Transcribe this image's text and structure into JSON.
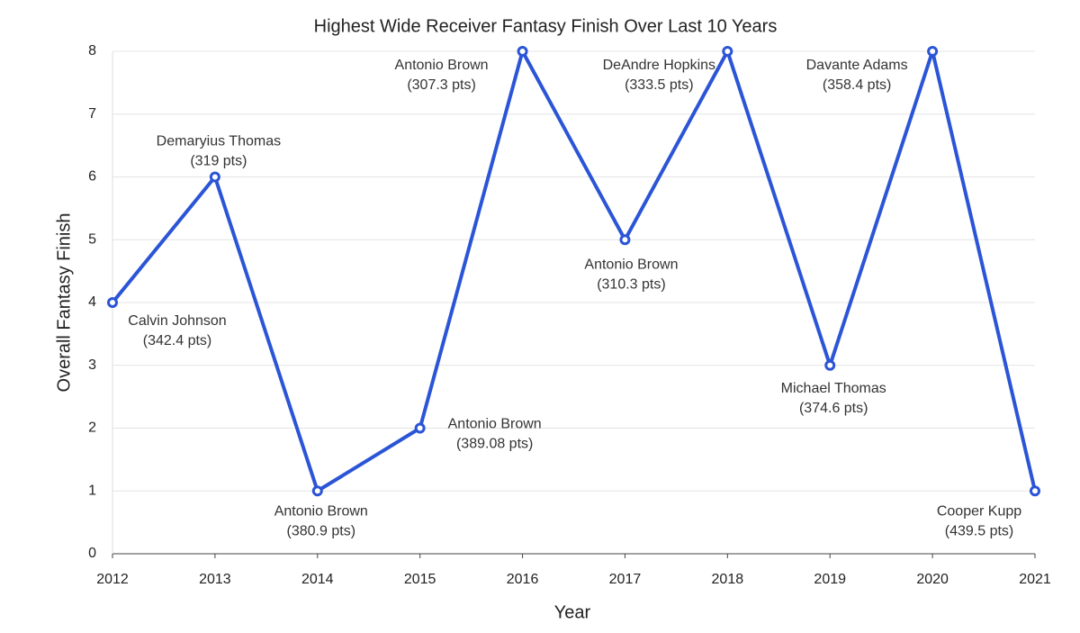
{
  "chart_data": {
    "type": "line",
    "title": "Highest Wide Receiver Fantasy Finish Over Last 10 Years",
    "x_label": "Year",
    "y_label": "Overall Fantasy Finish",
    "x": [
      2012,
      2013,
      2014,
      2015,
      2016,
      2017,
      2018,
      2019,
      2020,
      2021
    ],
    "values": [
      4,
      6,
      1,
      2,
      8,
      5,
      8,
      3,
      8,
      1
    ],
    "color": "#2b55d6",
    "xlim": [
      2012,
      2021
    ],
    "xticks": [
      2012,
      2013,
      2014,
      2015,
      2016,
      2017,
      2018,
      2019,
      2020,
      2021
    ],
    "ylim": [
      0,
      8
    ],
    "yticks": [
      0,
      1,
      2,
      3,
      4,
      5,
      6,
      7,
      8
    ],
    "grid": true,
    "annotations": [
      [
        "Calvin Johnson",
        "(342.4 pts)"
      ],
      [
        "Demaryius Thomas",
        "(319 pts)"
      ],
      [
        "Antonio Brown",
        "(380.9 pts)"
      ],
      [
        "Antonio Brown",
        "(389.08 pts)"
      ],
      [
        "Antonio Brown",
        "(307.3 pts)"
      ],
      [
        "Antonio Brown",
        "(310.3 pts)"
      ],
      [
        "DeAndre Hopkins",
        "(333.5 pts)"
      ],
      [
        "Michael Thomas",
        "(374.6 pts)"
      ],
      [
        "Davante Adams",
        "(358.4 pts)"
      ],
      [
        "Cooper Kupp",
        "(439.5 pts)"
      ]
    ]
  }
}
